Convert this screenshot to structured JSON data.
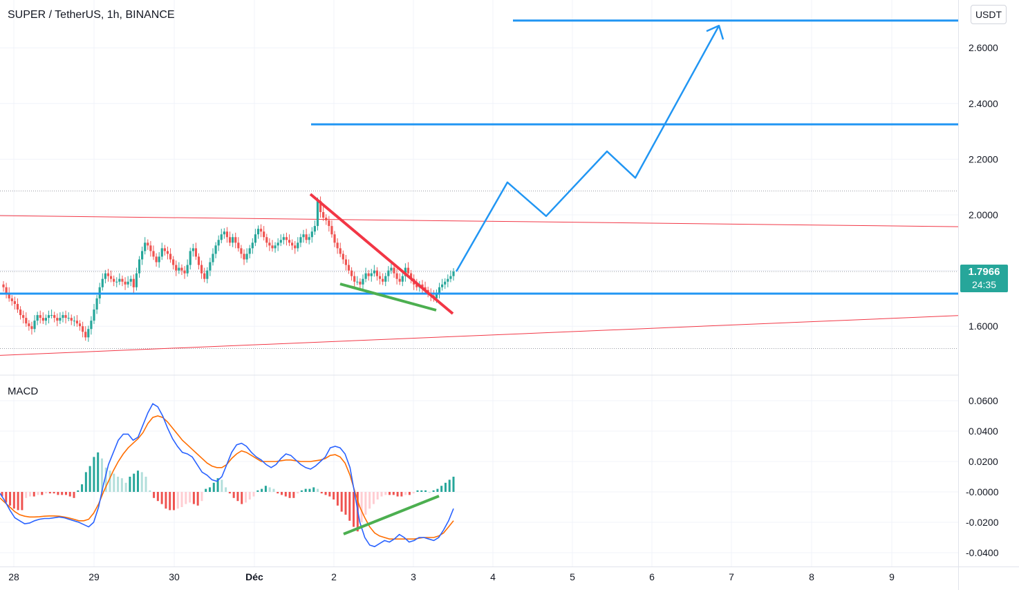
{
  "header": {
    "symbol_title": "SUPER / TetherUS, 1h, BINANCE",
    "currency_button": "USDT"
  },
  "indicator": {
    "name": "MACD"
  },
  "price_badge": {
    "price": "1.7966",
    "countdown": "24:35"
  },
  "colors": {
    "up": "#26a69a",
    "down": "#ef5350",
    "macd_line": "#2962ff",
    "signal_line": "#ff6d00",
    "hist_up_strong": "#26a69a",
    "hist_up_weak": "#b2dfdb",
    "hist_down_strong": "#ef5350",
    "hist_down_weak": "#ffcdd2",
    "drawing_blue": "#2196f3",
    "drawing_red": "#f23645",
    "drawing_green": "#4caf50"
  },
  "chart_data": [
    {
      "type": "candlestick",
      "title": "SUPER / TetherUS, 1h, BINANCE",
      "x_tick_labels": [
        "28",
        "29",
        "30",
        "Déc",
        "2",
        "3",
        "4",
        "5",
        "6",
        "7",
        "8",
        "9"
      ],
      "y_tick_labels": [
        "2.6000",
        "2.4000",
        "2.2000",
        "2.0000",
        "1.6000"
      ],
      "ylim": [
        1.48,
        2.7
      ],
      "last_price": 1.7966,
      "series": [
        {
          "close": [
            1.74,
            1.72,
            1.7,
            1.69,
            1.68,
            1.66,
            1.64,
            1.63,
            1.61,
            1.6,
            1.59,
            1.62,
            1.64,
            1.63,
            1.62,
            1.63,
            1.64,
            1.64,
            1.63,
            1.62,
            1.63,
            1.64,
            1.63,
            1.63,
            1.62,
            1.62,
            1.61,
            1.6,
            1.58,
            1.56,
            1.59,
            1.62,
            1.66,
            1.7,
            1.74,
            1.77,
            1.79,
            1.78,
            1.77,
            1.76,
            1.76,
            1.77,
            1.76,
            1.75,
            1.76,
            1.77,
            1.74,
            1.79,
            1.84,
            1.87,
            1.9,
            1.89,
            1.87,
            1.85,
            1.83,
            1.85,
            1.88,
            1.87,
            1.86,
            1.84,
            1.82,
            1.8,
            1.81,
            1.8,
            1.79,
            1.82,
            1.87,
            1.88,
            1.85,
            1.82,
            1.79,
            1.77,
            1.8,
            1.83,
            1.86,
            1.89,
            1.91,
            1.93,
            1.94,
            1.92,
            1.9,
            1.92,
            1.9,
            1.88,
            1.86,
            1.84,
            1.86,
            1.88,
            1.9,
            1.93,
            1.95,
            1.94,
            1.92,
            1.9,
            1.89,
            1.88,
            1.89,
            1.9,
            1.91,
            1.92,
            1.91,
            1.9,
            1.89,
            1.88,
            1.9,
            1.92,
            1.93,
            1.91,
            1.92,
            1.94,
            1.96,
            2.05,
            2.01,
            1.99,
            1.98,
            1.96,
            1.93,
            1.9,
            1.88,
            1.86,
            1.84,
            1.82,
            1.8,
            1.78,
            1.76,
            1.76,
            1.75,
            1.77,
            1.79,
            1.78,
            1.79,
            1.8,
            1.78,
            1.77,
            1.76,
            1.78,
            1.8,
            1.81,
            1.79,
            1.77,
            1.76,
            1.78,
            1.81,
            1.79,
            1.77,
            1.75,
            1.74,
            1.75,
            1.74,
            1.73,
            1.72,
            1.71,
            1.7,
            1.72,
            1.74,
            1.75,
            1.76,
            1.77,
            1.78,
            1.7966
          ]
        }
      ]
    },
    {
      "type": "line",
      "title": "MACD",
      "y_tick_labels": [
        "0.0600",
        "0.0400",
        "0.0200",
        "-0.0000",
        "-0.0200",
        "-0.0400"
      ],
      "ylim": [
        -0.046,
        0.066
      ],
      "series": [
        {
          "name": "MACD",
          "values": [
            -0.001,
            -0.006,
            -0.012,
            -0.017,
            -0.019,
            -0.021,
            -0.0205,
            -0.019,
            -0.018,
            -0.0175,
            -0.0175,
            -0.017,
            -0.0165,
            -0.017,
            -0.018,
            -0.019,
            -0.02,
            -0.0215,
            -0.023,
            -0.02,
            -0.01,
            0.005,
            0.018,
            0.026,
            0.034,
            0.038,
            0.038,
            0.034,
            0.036,
            0.044,
            0.052,
            0.058,
            0.056,
            0.05,
            0.042,
            0.035,
            0.03,
            0.026,
            0.025,
            0.023,
            0.018,
            0.013,
            0.011,
            0.008,
            0.007,
            0.01,
            0.018,
            0.026,
            0.031,
            0.032,
            0.03,
            0.026,
            0.023,
            0.021,
            0.018,
            0.016,
            0.018,
            0.022,
            0.025,
            0.024,
            0.021,
            0.018,
            0.016,
            0.015,
            0.017,
            0.02,
            0.023,
            0.029,
            0.03,
            0.029,
            0.025,
            0.016,
            -0.002,
            -0.02,
            -0.03,
            -0.035,
            -0.036,
            -0.034,
            -0.032,
            -0.033,
            -0.031,
            -0.028,
            -0.03,
            -0.033,
            -0.032,
            -0.03,
            -0.03,
            -0.031,
            -0.032,
            -0.03,
            -0.025,
            -0.019,
            -0.011
          ]
        },
        {
          "name": "Signal",
          "values": [
            -0.004,
            -0.007,
            -0.01,
            -0.013,
            -0.015,
            -0.016,
            -0.0165,
            -0.0165,
            -0.0163,
            -0.016,
            -0.0158,
            -0.0158,
            -0.016,
            -0.0165,
            -0.0172,
            -0.018,
            -0.019,
            -0.019,
            -0.018,
            -0.014,
            -0.008,
            0.0,
            0.007,
            0.014,
            0.02,
            0.025,
            0.029,
            0.032,
            0.035,
            0.039,
            0.045,
            0.049,
            0.05,
            0.049,
            0.046,
            0.042,
            0.038,
            0.034,
            0.031,
            0.028,
            0.025,
            0.022,
            0.019,
            0.017,
            0.016,
            0.016,
            0.018,
            0.022,
            0.025,
            0.027,
            0.026,
            0.024,
            0.022,
            0.02,
            0.02,
            0.02,
            0.02,
            0.0205,
            0.021,
            0.021,
            0.0205,
            0.02,
            0.02,
            0.02,
            0.0205,
            0.021,
            0.022,
            0.024,
            0.0245,
            0.023,
            0.019,
            0.011,
            0.0,
            -0.01,
            -0.017,
            -0.023,
            -0.027,
            -0.029,
            -0.03,
            -0.031,
            -0.031,
            -0.031,
            -0.031,
            -0.031,
            -0.031,
            -0.0305,
            -0.03,
            -0.03,
            -0.03,
            -0.029,
            -0.027,
            -0.023,
            -0.019
          ]
        }
      ],
      "histogram": [
        -0.003,
        -0.007,
        -0.009,
        -0.011,
        -0.012,
        -0.012,
        -0.004,
        -0.003,
        -0.003,
        -0.002,
        -0.002,
        -0.001,
        -0.001,
        -0.001,
        -0.002,
        -0.002,
        -0.002,
        -0.003,
        -0.004,
        0.001,
        0.005,
        0.013,
        0.017,
        0.023,
        0.026,
        0.022,
        0.016,
        0.014,
        0.012,
        0.01,
        0.009,
        0.006,
        0.01,
        0.012,
        0.014,
        0.013,
        0.01,
        0.001,
        -0.004,
        -0.006,
        -0.008,
        -0.011,
        -0.012,
        -0.012,
        -0.011,
        -0.01,
        -0.008,
        -0.007,
        -0.008,
        -0.009,
        -0.006,
        0.002,
        0.003,
        0.006,
        0.009,
        0.008,
        0.003,
        -0.001,
        -0.004,
        -0.006,
        -0.008,
        -0.007,
        -0.005,
        -0.003,
        0.001,
        0.002,
        0.004,
        0.003,
        0.002,
        -0.001,
        -0.002,
        -0.003,
        -0.004,
        -0.004,
        -0.001,
        0.001,
        0.002,
        0.002,
        0.003,
        0.002,
        -0.001,
        -0.002,
        -0.003,
        -0.005,
        -0.009,
        -0.013,
        -0.015,
        -0.019,
        -0.023,
        -0.026,
        -0.02,
        -0.015,
        -0.011,
        -0.008,
        -0.005,
        -0.003,
        -0.002,
        -0.002,
        -0.002,
        -0.003,
        -0.003,
        -0.002,
        -0.002,
        -0.001,
        0.001,
        0.001,
        0.001,
        0.0,
        0.001,
        0.002,
        0.004,
        0.006,
        0.008,
        0.01
      ]
    }
  ],
  "drawings": {
    "horizontal_levels": [
      1.717,
      2.325,
      2.698
    ],
    "channel_upper": {
      "from": [
        0,
        1.9972
      ],
      "to": [
        1386,
        1.9575
      ]
    },
    "channel_lower": {
      "from": [
        0,
        1.4953
      ],
      "to": [
        1386,
        1.6382
      ]
    },
    "dotted_levels": [
      2.086,
      1.7966,
      1.52
    ],
    "projection_path": [
      [
        660,
        1.7966
      ],
      [
        734,
        2.1168
      ],
      [
        790,
        1.9955
      ],
      [
        878,
        2.2281
      ],
      [
        919,
        2.133
      ],
      [
        1040,
        2.6795
      ]
    ]
  }
}
